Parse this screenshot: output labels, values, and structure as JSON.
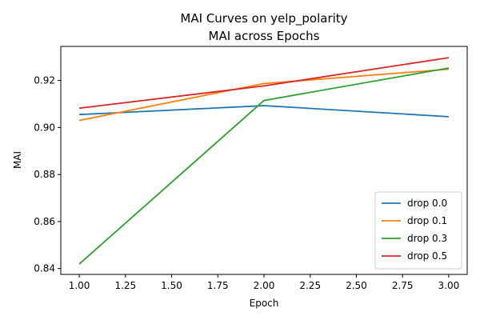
{
  "chart_data": {
    "type": "line",
    "title": "MAI Curves on yelp_polarity",
    "subtitle": "MAI across Epochs",
    "xlabel": "Epoch",
    "ylabel": "MAI",
    "x": [
      1.0,
      2.0,
      3.0
    ],
    "xlim": [
      0.9,
      3.1
    ],
    "ylim": [
      0.8375,
      0.9345
    ],
    "xticks": [
      "1.00",
      "1.25",
      "1.50",
      "1.75",
      "2.00",
      "2.25",
      "2.50",
      "2.75",
      "3.00"
    ],
    "yticks": [
      "0.84",
      "0.86",
      "0.88",
      "0.90",
      "0.92"
    ],
    "grid": false,
    "legend_position": "lower-right",
    "series": [
      {
        "name": "drop 0.0",
        "color": "#1f77b4",
        "values": [
          0.9055,
          0.9093,
          0.9046
        ]
      },
      {
        "name": "drop 0.1",
        "color": "#ff7f0e",
        "values": [
          0.903,
          0.9187,
          0.9248
        ]
      },
      {
        "name": "drop 0.3",
        "color": "#2ca02c",
        "values": [
          0.8419,
          0.9115,
          0.9253
        ]
      },
      {
        "name": "drop 0.5",
        "color": "#d62728",
        "values": [
          0.9082,
          0.9177,
          0.9297
        ]
      }
    ]
  }
}
